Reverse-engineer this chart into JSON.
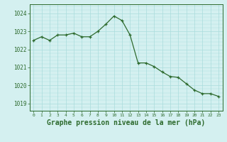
{
  "x": [
    0,
    1,
    2,
    3,
    4,
    5,
    6,
    7,
    8,
    9,
    10,
    11,
    12,
    13,
    14,
    15,
    16,
    17,
    18,
    19,
    20,
    21,
    22,
    23
  ],
  "y": [
    1022.5,
    1022.7,
    1022.5,
    1022.8,
    1022.8,
    1022.9,
    1022.7,
    1022.7,
    1023.0,
    1023.4,
    1023.85,
    1023.6,
    1022.8,
    1021.25,
    1021.25,
    1021.05,
    1020.75,
    1020.5,
    1020.45,
    1020.1,
    1019.75,
    1019.55,
    1019.55,
    1019.4
  ],
  "line_color": "#2d6a2d",
  "marker_color": "#2d6a2d",
  "bg_color": "#d4f0f0",
  "grid_color": "#aadddd",
  "tick_color": "#2d6a2d",
  "border_color": "#2d6a2d",
  "xlabel": "Graphe pression niveau de la mer (hPa)",
  "xlabel_fontsize": 7,
  "ylabel_ticks": [
    1019,
    1020,
    1021,
    1022,
    1023,
    1024
  ],
  "xlim": [
    -0.5,
    23.5
  ],
  "ylim": [
    1018.6,
    1024.5
  ]
}
